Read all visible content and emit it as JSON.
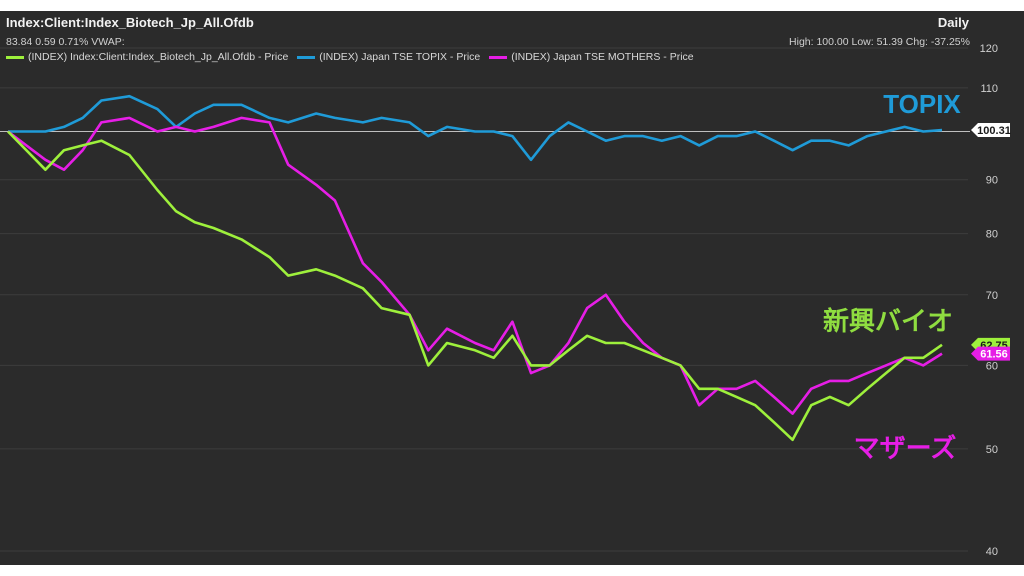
{
  "header": {
    "title": "Index:Client:Index_Biotech_Jp_All.Ofdb",
    "stats": "83.84 0.59 0.71%  VWAP:",
    "period": "Daily",
    "hilo": "High: 100.00 Low: 51.39 Chg: -37.25%"
  },
  "legend": [
    {
      "label": "(INDEX) Index:Client:Index_Biotech_Jp_All.Ofdb - Price",
      "color": "#9ef03c"
    },
    {
      "label": "(INDEX) Japan TSE TOPIX - Price",
      "color": "#1f9bd8"
    },
    {
      "label": "(INDEX) Japan TSE MOTHERS - Price",
      "color": "#e61ee6"
    }
  ],
  "annotations": {
    "topix": "TOPIX",
    "biotech": "新興バイオ",
    "mothers": "マザーズ"
  },
  "colors": {
    "background": "#2b2b2b",
    "grid": "#3c3c3c",
    "baseline": "#bfbfbf",
    "biotech": "#9ef03c",
    "topix": "#1f9bd8",
    "mothers": "#e61ee6"
  },
  "chart_data": {
    "type": "line",
    "y_scale": "log",
    "ylim": [
      40,
      120
    ],
    "yticks": [
      120,
      110,
      100,
      90,
      80,
      70,
      60,
      50,
      40
    ],
    "ytick_labels": [
      "120",
      "110",
      "",
      "90",
      "80",
      "70",
      "60",
      "50",
      "40"
    ],
    "reference_line": 100,
    "end_labels": {
      "topix": "100.31",
      "biotech": "62.75",
      "mothers": "61.56"
    },
    "x": [
      0,
      0.04,
      0.06,
      0.08,
      0.1,
      0.13,
      0.16,
      0.18,
      0.2,
      0.22,
      0.25,
      0.28,
      0.3,
      0.33,
      0.35,
      0.38,
      0.4,
      0.43,
      0.45,
      0.47,
      0.5,
      0.52,
      0.54,
      0.56,
      0.58,
      0.6,
      0.62,
      0.64,
      0.66,
      0.68,
      0.7,
      0.72,
      0.74,
      0.76,
      0.78,
      0.8,
      0.82,
      0.84,
      0.86,
      0.88,
      0.9,
      0.92,
      0.94,
      0.96,
      0.98,
      1.0
    ],
    "series": [
      {
        "name": "(INDEX) Index:Client:Index_Biotech_Jp_All.Ofdb - Price",
        "key": "biotech",
        "values": [
          100,
          92,
          96,
          97,
          98,
          95,
          88,
          84,
          82,
          81,
          79,
          76,
          73,
          74,
          73,
          71,
          68,
          67,
          60,
          63,
          62,
          61,
          64,
          60,
          60,
          62,
          64,
          63,
          63,
          62,
          61,
          60,
          57,
          57,
          56,
          55,
          53,
          51,
          55,
          56,
          55,
          57,
          59,
          61,
          61,
          62.75
        ]
      },
      {
        "name": "(INDEX) Japan TSE TOPIX - Price",
        "key": "topix",
        "values": [
          100,
          100,
          101,
          103,
          107,
          108,
          105,
          101,
          104,
          106,
          106,
          103,
          102,
          104,
          103,
          102,
          103,
          102,
          99,
          101,
          100,
          100,
          99,
          94,
          99,
          102,
          100,
          98,
          99,
          99,
          98,
          99,
          97,
          99,
          99,
          100,
          98,
          96,
          98,
          98,
          97,
          99,
          100,
          101,
          100,
          100.31
        ]
      },
      {
        "name": "(INDEX) Japan TSE MOTHERS - Price",
        "key": "mothers",
        "values": [
          100,
          94,
          92,
          96,
          102,
          103,
          100,
          101,
          100,
          101,
          103,
          102,
          93,
          89,
          86,
          75,
          72,
          67,
          62,
          65,
          63,
          62,
          66,
          59,
          60,
          63,
          68,
          70,
          66,
          63,
          61,
          60,
          55,
          57,
          57,
          58,
          56,
          54,
          57,
          58,
          58,
          59,
          60,
          61,
          60,
          61.56
        ]
      }
    ]
  }
}
